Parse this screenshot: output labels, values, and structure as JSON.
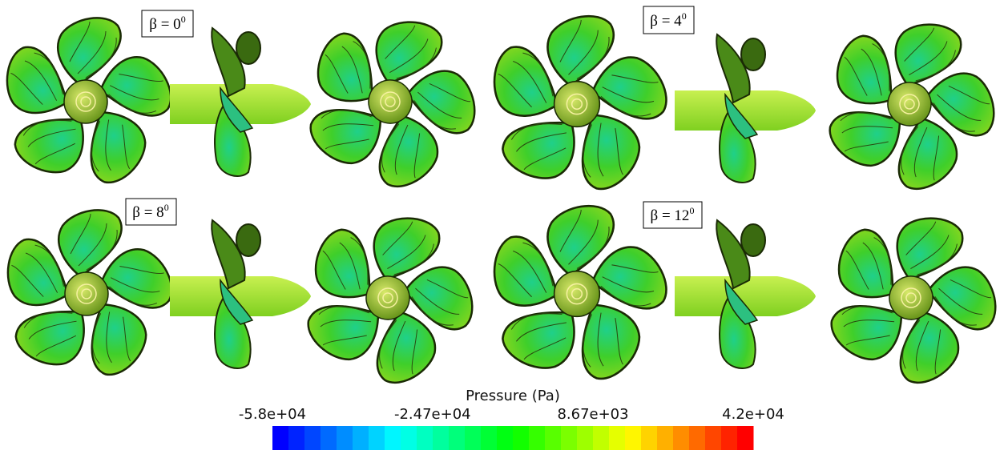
{
  "panels": [
    {
      "label": "β = 0",
      "sup": "0"
    },
    {
      "label": "β = 4",
      "sup": "0"
    },
    {
      "label": "β = 8",
      "sup": "0"
    },
    {
      "label": "β = 12",
      "sup": "0"
    }
  ],
  "colorbar": {
    "title": "Pressure (Pa)",
    "lim": [
      -58000,
      42000
    ],
    "ticks": [
      {
        "value": -58000,
        "label": "-5.8e+04"
      },
      {
        "value": -24700,
        "label": "-2.47e+04"
      },
      {
        "value": 8670,
        "label": "8.67e+03"
      },
      {
        "value": 42000,
        "label": "4.2e+04"
      }
    ]
  }
}
